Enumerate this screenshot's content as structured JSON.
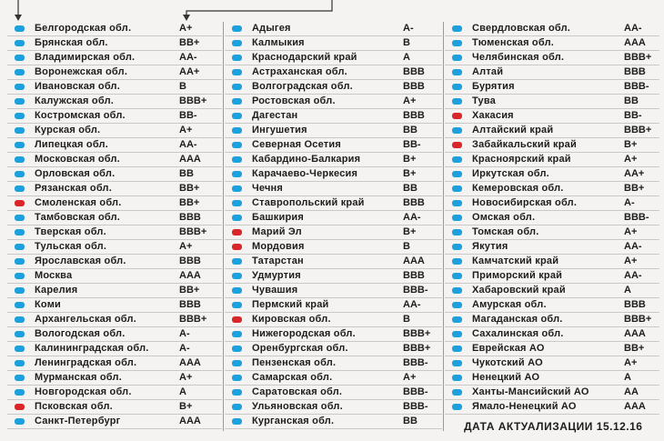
{
  "columns": [
    {
      "rows": [
        {
          "name": "Белгородская обл.",
          "rating": "A+",
          "color": "#1ea0dc"
        },
        {
          "name": "Брянская обл.",
          "rating": "BB+",
          "color": "#1ea0dc"
        },
        {
          "name": "Владимирская обл.",
          "rating": "AA-",
          "color": "#1ea0dc"
        },
        {
          "name": "Воронежская обл.",
          "rating": "AA+",
          "color": "#1ea0dc"
        },
        {
          "name": "Ивановская обл.",
          "rating": "B",
          "color": "#1ea0dc"
        },
        {
          "name": "Калужская обл.",
          "rating": "BBB+",
          "color": "#1ea0dc"
        },
        {
          "name": "Костромская обл.",
          "rating": "BB-",
          "color": "#1ea0dc"
        },
        {
          "name": "Курская обл.",
          "rating": "A+",
          "color": "#1ea0dc"
        },
        {
          "name": "Липецкая обл.",
          "rating": "AA-",
          "color": "#1ea0dc"
        },
        {
          "name": "Московская обл.",
          "rating": "AAA",
          "color": "#1ea0dc"
        },
        {
          "name": "Орловская обл.",
          "rating": "BB",
          "color": "#1ea0dc"
        },
        {
          "name": "Рязанская обл.",
          "rating": "BB+",
          "color": "#1ea0dc"
        },
        {
          "name": "Смоленская обл.",
          "rating": "BB+",
          "color": "#d9262b"
        },
        {
          "name": "Тамбовская обл.",
          "rating": "BBB",
          "color": "#1ea0dc"
        },
        {
          "name": "Тверская обл.",
          "rating": "BBB+",
          "color": "#1ea0dc"
        },
        {
          "name": "Тульская обл.",
          "rating": "A+",
          "color": "#1ea0dc"
        },
        {
          "name": "Ярославская обл.",
          "rating": "BBB",
          "color": "#1ea0dc"
        },
        {
          "name": "Москва",
          "rating": "AAA",
          "color": "#1ea0dc"
        },
        {
          "name": "Карелия",
          "rating": "BB+",
          "color": "#1ea0dc"
        },
        {
          "name": "Коми",
          "rating": "BBB",
          "color": "#1ea0dc"
        },
        {
          "name": "Архангельская обл.",
          "rating": "BBB+",
          "color": "#1ea0dc"
        },
        {
          "name": "Вологодская обл.",
          "rating": "A-",
          "color": "#1ea0dc"
        },
        {
          "name": "Калининградская обл.",
          "rating": "A-",
          "color": "#1ea0dc"
        },
        {
          "name": "Ленинградская обл.",
          "rating": "AAA",
          "color": "#1ea0dc"
        },
        {
          "name": "Мурманская обл.",
          "rating": "A+",
          "color": "#1ea0dc"
        },
        {
          "name": "Новгородская обл.",
          "rating": "A",
          "color": "#1ea0dc"
        },
        {
          "name": "Псковская обл.",
          "rating": "B+",
          "color": "#d9262b"
        },
        {
          "name": "Санкт-Петербург",
          "rating": "AAA",
          "color": "#1ea0dc"
        }
      ]
    },
    {
      "rows": [
        {
          "name": "Адыгея",
          "rating": "A-",
          "color": "#1ea0dc"
        },
        {
          "name": "Калмыкия",
          "rating": "B",
          "color": "#1ea0dc"
        },
        {
          "name": "Краснодарский край",
          "rating": "A",
          "color": "#1ea0dc"
        },
        {
          "name": "Астраханская обл.",
          "rating": "BBB",
          "color": "#1ea0dc"
        },
        {
          "name": "Волгоградская обл.",
          "rating": "BBB",
          "color": "#1ea0dc"
        },
        {
          "name": "Ростовская обл.",
          "rating": "A+",
          "color": "#1ea0dc"
        },
        {
          "name": "Дагестан",
          "rating": "BBB",
          "color": "#1ea0dc"
        },
        {
          "name": "Ингушетия",
          "rating": "BB",
          "color": "#1ea0dc"
        },
        {
          "name": "Северная Осетия",
          "rating": "BB-",
          "color": "#1ea0dc"
        },
        {
          "name": "Кабардино-Балкария",
          "rating": "B+",
          "color": "#1ea0dc"
        },
        {
          "name": "Карачаево-Черкесия",
          "rating": "B+",
          "color": "#1ea0dc"
        },
        {
          "name": "Чечня",
          "rating": "BB",
          "color": "#1ea0dc"
        },
        {
          "name": "Ставропольский край",
          "rating": "BBB",
          "color": "#1ea0dc"
        },
        {
          "name": "Башкирия",
          "rating": "AA-",
          "color": "#1ea0dc"
        },
        {
          "name": "Марий Эл",
          "rating": "B+",
          "color": "#d9262b"
        },
        {
          "name": "Мордовия",
          "rating": "B",
          "color": "#d9262b"
        },
        {
          "name": "Татарстан",
          "rating": "AAA",
          "color": "#1ea0dc"
        },
        {
          "name": "Удмуртия",
          "rating": "BBB",
          "color": "#1ea0dc"
        },
        {
          "name": "Чувашия",
          "rating": "BBB-",
          "color": "#1ea0dc"
        },
        {
          "name": "Пермский край",
          "rating": "AA-",
          "color": "#1ea0dc"
        },
        {
          "name": "Кировская обл.",
          "rating": "B",
          "color": "#d9262b"
        },
        {
          "name": "Нижегородская обл.",
          "rating": "BBB+",
          "color": "#1ea0dc"
        },
        {
          "name": "Оренбургская обл.",
          "rating": "BBB+",
          "color": "#1ea0dc"
        },
        {
          "name": "Пензенская обл.",
          "rating": "BBB-",
          "color": "#1ea0dc"
        },
        {
          "name": "Самарская обл.",
          "rating": "A+",
          "color": "#1ea0dc"
        },
        {
          "name": "Саратовская обл.",
          "rating": "BBB-",
          "color": "#1ea0dc"
        },
        {
          "name": "Ульяновская обл.",
          "rating": "BBB-",
          "color": "#1ea0dc"
        },
        {
          "name": "Курганская обл.",
          "rating": "BB",
          "color": "#1ea0dc"
        }
      ]
    },
    {
      "rows": [
        {
          "name": "Свердловская обл.",
          "rating": "AA-",
          "color": "#1ea0dc"
        },
        {
          "name": "Тюменская обл.",
          "rating": "AAA",
          "color": "#1ea0dc"
        },
        {
          "name": "Челябинская обл.",
          "rating": "BBB+",
          "color": "#1ea0dc"
        },
        {
          "name": "Алтай",
          "rating": "BBB",
          "color": "#1ea0dc"
        },
        {
          "name": "Бурятия",
          "rating": "BBB-",
          "color": "#1ea0dc"
        },
        {
          "name": "Тува",
          "rating": "BB",
          "color": "#1ea0dc"
        },
        {
          "name": "Хакасия",
          "rating": "BB-",
          "color": "#d9262b"
        },
        {
          "name": "Алтайский край",
          "rating": "BBB+",
          "color": "#1ea0dc"
        },
        {
          "name": "Забайкальский край",
          "rating": "B+",
          "color": "#d9262b"
        },
        {
          "name": "Красноярский край",
          "rating": "A+",
          "color": "#1ea0dc"
        },
        {
          "name": "Иркутская обл.",
          "rating": "AA+",
          "color": "#1ea0dc"
        },
        {
          "name": "Кемеровская обл.",
          "rating": "BB+",
          "color": "#1ea0dc"
        },
        {
          "name": "Новосибирская обл.",
          "rating": "A-",
          "color": "#1ea0dc"
        },
        {
          "name": "Омская обл.",
          "rating": "BBB-",
          "color": "#1ea0dc"
        },
        {
          "name": "Томская обл.",
          "rating": "A+",
          "color": "#1ea0dc"
        },
        {
          "name": "Якутия",
          "rating": "AA-",
          "color": "#1ea0dc"
        },
        {
          "name": "Камчатский край",
          "rating": "A+",
          "color": "#1ea0dc"
        },
        {
          "name": "Приморский край",
          "rating": "AA-",
          "color": "#1ea0dc"
        },
        {
          "name": "Хабаровский край",
          "rating": "A",
          "color": "#1ea0dc"
        },
        {
          "name": "Амурская обл.",
          "rating": "BBB",
          "color": "#1ea0dc"
        },
        {
          "name": "Магаданская обл.",
          "rating": "BBB+",
          "color": "#1ea0dc"
        },
        {
          "name": "Сахалинская обл.",
          "rating": "AAA",
          "color": "#1ea0dc"
        },
        {
          "name": "Еврейская АО",
          "rating": "BB+",
          "color": "#1ea0dc"
        },
        {
          "name": "Чукотский АО",
          "rating": "A+",
          "color": "#1ea0dc"
        },
        {
          "name": "Ненецкий АО",
          "rating": "A",
          "color": "#1ea0dc"
        },
        {
          "name": "Ханты-Мансийский АО",
          "rating": "AA",
          "color": "#1ea0dc"
        },
        {
          "name": "Ямало-Ненецкий АО",
          "rating": "AAA",
          "color": "#1ea0dc"
        }
      ]
    }
  ],
  "update_date": "ДАТА АКТУАЛИЗАЦИИ 15.12.16"
}
